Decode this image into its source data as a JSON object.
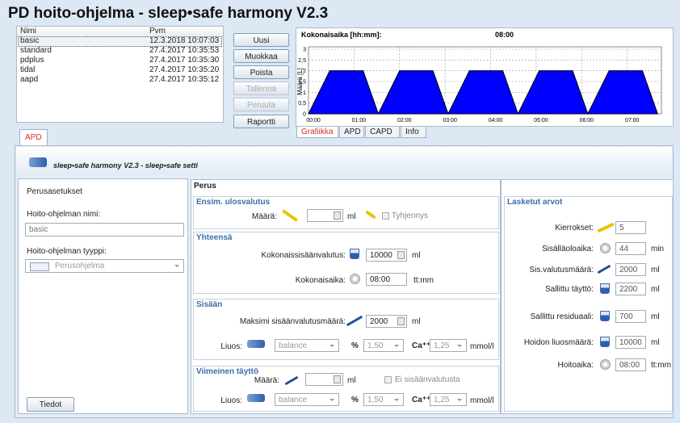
{
  "title": "PD hoito-ohjelma - sleep•safe harmony V2.3",
  "list": {
    "headers": [
      "Nimi",
      "Pvm"
    ],
    "rows": [
      [
        "basic",
        "12.3.2018 10:07:03"
      ],
      [
        "standard",
        "27.4.2017 10:35:53"
      ],
      [
        "pdplus",
        "27.4.2017 10:35:30"
      ],
      [
        "tidal",
        "27.4.2017 10:35:20"
      ],
      [
        "aapd",
        "27.4.2017 10:35:12"
      ]
    ]
  },
  "buttons": [
    {
      "label": "Uusi"
    },
    {
      "label": "Muokkaa"
    },
    {
      "label": "Poista"
    },
    {
      "label": "Tallenna",
      "disabled": true
    },
    {
      "label": "Peruuta",
      "disabled": true
    },
    {
      "label": "Raportti"
    }
  ],
  "chart": {
    "type": "area",
    "title": "Kokonaisaika [hh:mm]:",
    "total": "08:00",
    "ylabel": "Määrä [L]",
    "x": [
      0,
      28,
      72,
      92,
      120,
      164,
      184,
      212,
      256,
      276,
      304,
      348,
      368,
      396,
      440,
      460
    ],
    "values": [
      0,
      2,
      2,
      0,
      2,
      2,
      0,
      2,
      2,
      0,
      2,
      2,
      0,
      2,
      2,
      0
    ],
    "color": "#0000ff",
    "xlim": [
      0,
      465
    ],
    "ylim": [
      0,
      3
    ],
    "xticks": [
      {
        "value": 0,
        "label": "00:00"
      },
      {
        "value": 60,
        "label": "01:00"
      },
      {
        "value": 120,
        "label": "02:00"
      },
      {
        "value": 180,
        "label": "03:00"
      },
      {
        "value": 240,
        "label": "04:00"
      },
      {
        "value": 300,
        "label": "05:00"
      },
      {
        "value": 360,
        "label": "06:00"
      },
      {
        "value": 420,
        "label": "07:00"
      }
    ],
    "yticks": [
      0,
      {
        "value": 0.5,
        "label": "0,5"
      },
      1,
      {
        "value": 1.5,
        "label": "1,5"
      },
      2,
      {
        "value": 2.5,
        "label": "2,5"
      },
      3
    ],
    "grid": true
  },
  "chart_tabs": [
    "Grafiikka",
    "APD",
    "CAPD",
    "Info"
  ],
  "main_tab": "APD",
  "set_header": "sleep•safe harmony V2.3 - sleep•safe setti",
  "basic": {
    "title": "Perusasetukset",
    "name_label": "Hoito-ohjelman nimi:",
    "name": "basic",
    "type_label": "Hoito-ohjelman tyyppi:",
    "type": "Perusohjelma",
    "details_button": "Tiedot"
  },
  "perus": {
    "title": "Perus",
    "initial_drain": {
      "title": "Ensim. ulosvalutus",
      "amount_label": "Määrä:",
      "unit": "ml",
      "checkbox": "Tyhjennys"
    },
    "total": {
      "title": "Yhteensä",
      "inflow_label": "Kokonaissisäänvalutus:",
      "inflow": 10000,
      "inflow_unit": "ml",
      "time_label": "Kokonaisaika:",
      "time": "08:00",
      "time_unit": "tt:mm"
    },
    "inflow": {
      "title": "Sisään",
      "max_label": "Maksimi sisäänvalutusmäärä:",
      "max": 2000,
      "max_unit": "ml",
      "solution_label": "Liuos:",
      "solution": "balance",
      "percent_label": "%",
      "percent": "1,50",
      "ca_label": "Ca⁺⁺",
      "ca": "1,25",
      "ca_unit": "mmol/l"
    },
    "last_fill": {
      "title": "Viimeinen täyttö",
      "amount_label": "Määrä:",
      "unit": "ml",
      "checkbox": "Ei sisäänvalutusta",
      "solution_label": "Liuos:",
      "solution": "balance",
      "percent_label": "%",
      "percent": "1,50",
      "ca_label": "Ca⁺⁺",
      "ca": "1,25",
      "ca_unit": "mmol/l"
    }
  },
  "calculated": {
    "title": "Lasketut arvot",
    "rows": [
      {
        "label": "Kierrokset:",
        "value": 5
      },
      {
        "label": "Sisälläoloaika:",
        "value": 44,
        "unit": "min"
      },
      {
        "label": "Sis.valutusmäärä:",
        "value": 2000,
        "unit": "ml"
      },
      {
        "label": "Sallittu täyttö:",
        "value": 2200,
        "unit": "ml"
      },
      {
        "label": "Sallittu residuaali:",
        "value": 700,
        "unit": "ml"
      },
      {
        "label": "Hoidon liuosmäärä:",
        "value": 10000,
        "unit": "ml"
      },
      {
        "label": "Hoitoaika:",
        "value": "08:00",
        "unit": "tt:mm"
      }
    ]
  }
}
